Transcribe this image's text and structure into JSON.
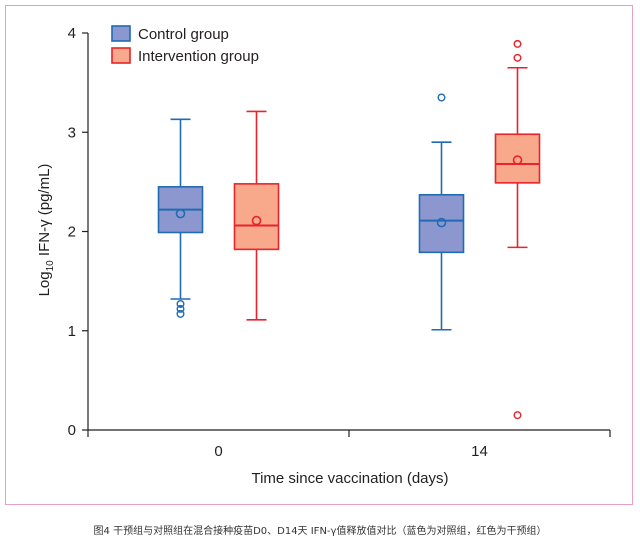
{
  "chart_data": {
    "type": "box",
    "xlabel": "Time since vaccination (days)",
    "ylabel": "Log",
    "ylabel_sub": "10",
    "ylabel_rest": " IFN-γ (pg/mL)",
    "ylim": [
      0,
      4
    ],
    "yticks": [
      "0",
      "1",
      "2",
      "3",
      "4"
    ],
    "categories": [
      "0",
      "14"
    ],
    "grid": false,
    "legend_position": "top-left",
    "series": [
      {
        "name": "Control group",
        "fill": "#8c97cf",
        "stroke": "#1f6bb4",
        "boxes": [
          {
            "whisker_low": 1.32,
            "q1": 1.99,
            "median": 2.22,
            "q3": 2.45,
            "whisker_high": 3.13,
            "mean": 2.18,
            "outliers": [
              1.27,
              1.22,
              1.17
            ]
          },
          {
            "whisker_low": 1.01,
            "q1": 1.79,
            "median": 2.11,
            "q3": 2.37,
            "whisker_high": 2.9,
            "mean": 2.09,
            "outliers": [
              3.35
            ]
          }
        ]
      },
      {
        "name": "Intervention group",
        "fill": "#f9a98b",
        "stroke": "#e8232a",
        "boxes": [
          {
            "whisker_low": 1.11,
            "q1": 1.82,
            "median": 2.06,
            "q3": 2.48,
            "whisker_high": 3.21,
            "mean": 2.11,
            "outliers": []
          },
          {
            "whisker_low": 1.84,
            "q1": 2.49,
            "median": 2.68,
            "q3": 2.98,
            "whisker_high": 3.65,
            "mean": 2.72,
            "outliers": [
              3.89,
              3.75,
              0.15
            ]
          }
        ]
      }
    ]
  },
  "caption": "图4 干预组与对照组在混合接种疫苗D0、D14天 IFN-γ值释放值对比（蓝色为对照组，红色为干预组）"
}
